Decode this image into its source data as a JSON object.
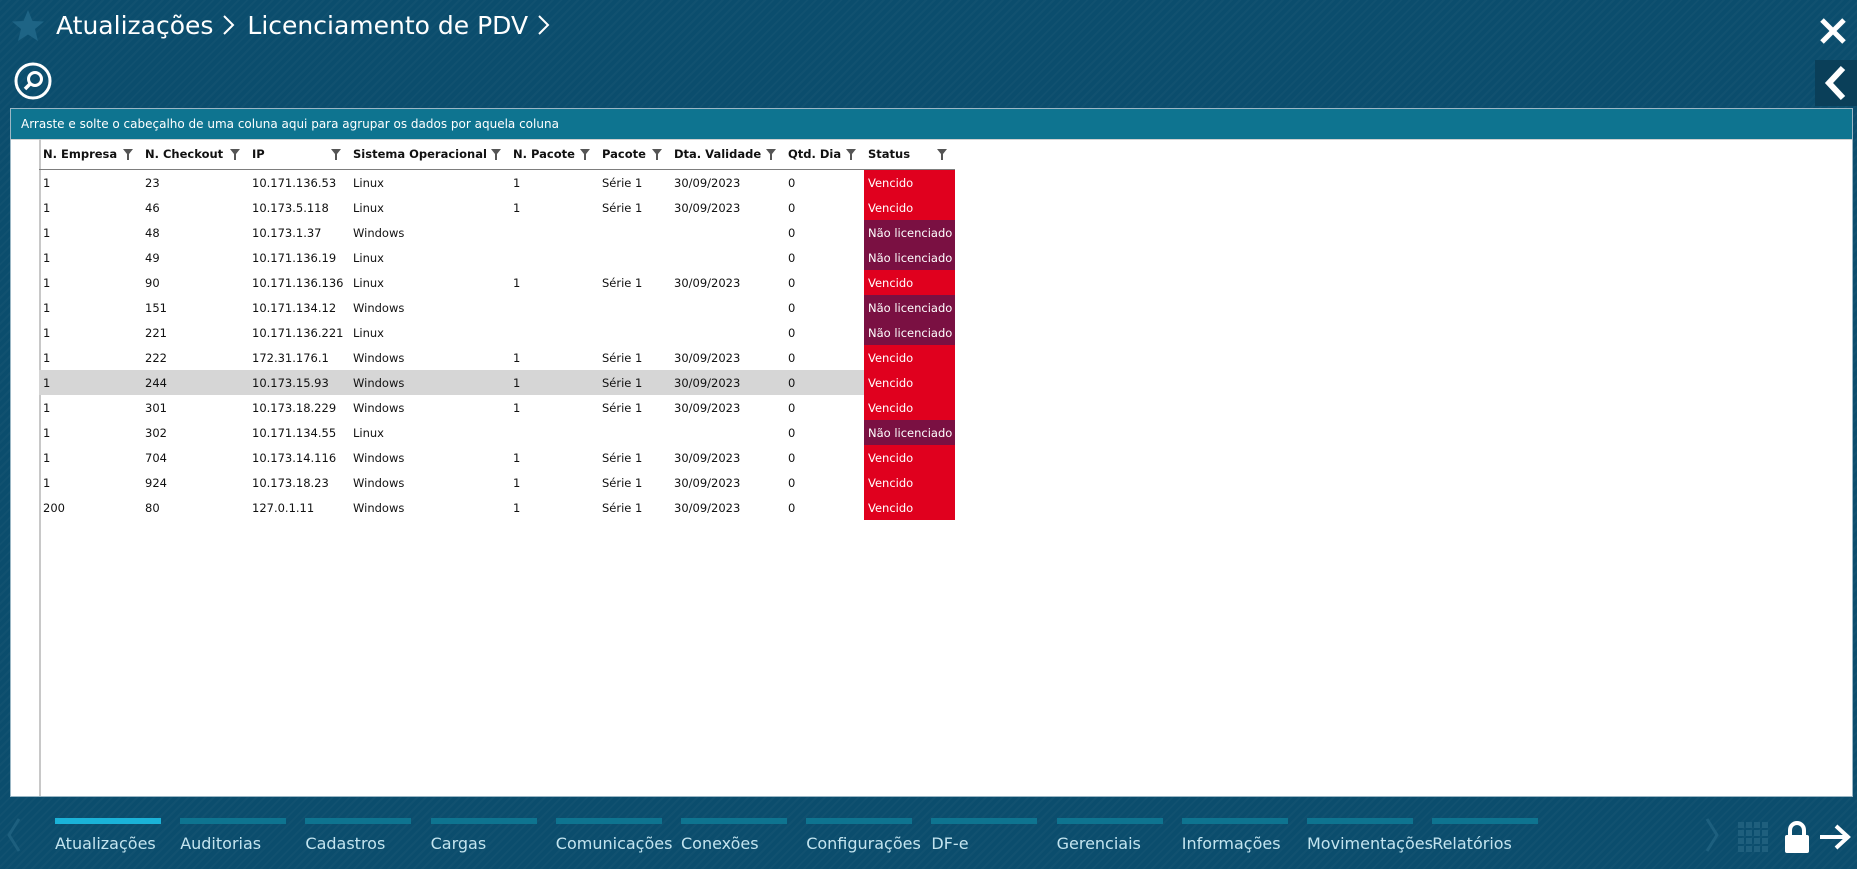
{
  "header": {
    "breadcrumb": [
      "Atualizações",
      "Licenciamento de PDV"
    ]
  },
  "grid": {
    "group_hint": "Arraste e solte o cabeçalho de uma coluna aqui para agrupar os dados por aquela coluna",
    "columns": [
      "N. Empresa",
      "N. Checkout",
      "IP",
      "Sistema Operacional",
      "N. Pacote",
      "Pacote",
      "Dta. Validade",
      "Qtd. Dia",
      "Status"
    ],
    "rows": [
      {
        "empresa": "1",
        "checkout": "23",
        "ip": "10.171.136.53",
        "so": "Linux",
        "n_pacote": "1",
        "pacote": "Série 1",
        "validade": "30/09/2023",
        "qtd_dia": "0",
        "status": "Vencido"
      },
      {
        "empresa": "1",
        "checkout": "46",
        "ip": "10.173.5.118",
        "so": "Linux",
        "n_pacote": "1",
        "pacote": "Série 1",
        "validade": "30/09/2023",
        "qtd_dia": "0",
        "status": "Vencido"
      },
      {
        "empresa": "1",
        "checkout": "48",
        "ip": "10.173.1.37",
        "so": "Windows",
        "n_pacote": "",
        "pacote": "",
        "validade": "",
        "qtd_dia": "0",
        "status": "Não licenciado"
      },
      {
        "empresa": "1",
        "checkout": "49",
        "ip": "10.171.136.19",
        "so": "Linux",
        "n_pacote": "",
        "pacote": "",
        "validade": "",
        "qtd_dia": "0",
        "status": "Não licenciado"
      },
      {
        "empresa": "1",
        "checkout": "90",
        "ip": "10.171.136.136",
        "so": "Linux",
        "n_pacote": "1",
        "pacote": "Série 1",
        "validade": "30/09/2023",
        "qtd_dia": "0",
        "status": "Vencido"
      },
      {
        "empresa": "1",
        "checkout": "151",
        "ip": "10.171.134.12",
        "so": "Windows",
        "n_pacote": "",
        "pacote": "",
        "validade": "",
        "qtd_dia": "0",
        "status": "Não licenciado"
      },
      {
        "empresa": "1",
        "checkout": "221",
        "ip": "10.171.136.221",
        "so": "Linux",
        "n_pacote": "",
        "pacote": "",
        "validade": "",
        "qtd_dia": "0",
        "status": "Não licenciado"
      },
      {
        "empresa": "1",
        "checkout": "222",
        "ip": "172.31.176.1",
        "so": "Windows",
        "n_pacote": "1",
        "pacote": "Série 1",
        "validade": "30/09/2023",
        "qtd_dia": "0",
        "status": "Vencido"
      },
      {
        "empresa": "1",
        "checkout": "244",
        "ip": "10.173.15.93",
        "so": "Windows",
        "n_pacote": "1",
        "pacote": "Série 1",
        "validade": "30/09/2023",
        "qtd_dia": "0",
        "status": "Vencido",
        "selected": true
      },
      {
        "empresa": "1",
        "checkout": "301",
        "ip": "10.173.18.229",
        "so": "Windows",
        "n_pacote": "1",
        "pacote": "Série 1",
        "validade": "30/09/2023",
        "qtd_dia": "0",
        "status": "Vencido"
      },
      {
        "empresa": "1",
        "checkout": "302",
        "ip": "10.171.134.55",
        "so": "Linux",
        "n_pacote": "",
        "pacote": "",
        "validade": "",
        "qtd_dia": "0",
        "status": "Não licenciado"
      },
      {
        "empresa": "1",
        "checkout": "704",
        "ip": "10.173.14.116",
        "so": "Windows",
        "n_pacote": "1",
        "pacote": "Série 1",
        "validade": "30/09/2023",
        "qtd_dia": "0",
        "status": "Vencido"
      },
      {
        "empresa": "1",
        "checkout": "924",
        "ip": "10.173.18.23",
        "so": "Windows",
        "n_pacote": "1",
        "pacote": "Série 1",
        "validade": "30/09/2023",
        "qtd_dia": "0",
        "status": "Vencido"
      },
      {
        "empresa": "200",
        "checkout": "80",
        "ip": "127.0.1.11",
        "so": "Windows",
        "n_pacote": "1",
        "pacote": "Série 1",
        "validade": "30/09/2023",
        "qtd_dia": "0",
        "status": "Vencido"
      }
    ]
  },
  "bottom_nav": {
    "active_tab": "Atualizações",
    "tabs": [
      "Atualizações",
      "Auditorias",
      "Cadastros",
      "Cargas",
      "Comunicações",
      "Conexões",
      "Configurações",
      "DF-e",
      "Gerenciais",
      "Informações",
      "Movimentações",
      "Relatórios"
    ]
  },
  "colors": {
    "background": "#0b4d6d",
    "group_bar": "#0e7490",
    "status_vencido": "#e0001e",
    "status_nao_licenciado": "#7a1042",
    "selected_row": "#d6d6d6"
  },
  "icons": {
    "favorite": "star-icon",
    "close": "close-icon",
    "search": "search-icon",
    "collapse": "chevron-left-icon",
    "filter": "filter-icon",
    "apps": "grid-icon",
    "lock": "lock-icon",
    "exit": "arrow-right-icon"
  }
}
